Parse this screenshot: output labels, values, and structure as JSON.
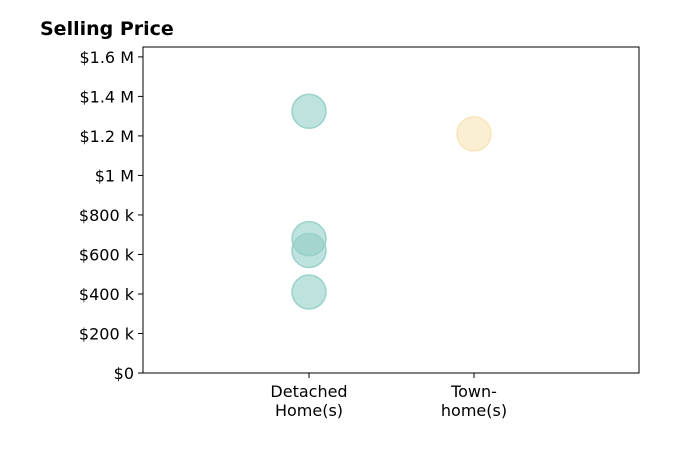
{
  "chart_data": {
    "type": "scatter",
    "title": "Selling Price",
    "xlabel": "",
    "ylabel": "",
    "categories": [
      [
        "Detached",
        "Home(s)"
      ],
      [
        "Town-",
        "home(s)"
      ]
    ],
    "ylim": [
      0,
      1650000
    ],
    "y_ticks": [
      0,
      200000,
      400000,
      600000,
      800000,
      1000000,
      1200000,
      1400000,
      1600000
    ],
    "y_tick_labels": [
      "$0",
      "$200 k",
      "$400 k",
      "$600 k",
      "$800 k",
      "$1 M",
      "$1.2 M",
      "$1.4 M",
      "$1.6 M"
    ],
    "grid": false,
    "legend": "none",
    "series": [
      {
        "category_index": 0,
        "color": "#93cfc7",
        "values": [
          1325000,
          680000,
          620000,
          410000
        ]
      },
      {
        "category_index": 1,
        "color": "#f7e3b5",
        "values": [
          1210000
        ]
      }
    ]
  }
}
